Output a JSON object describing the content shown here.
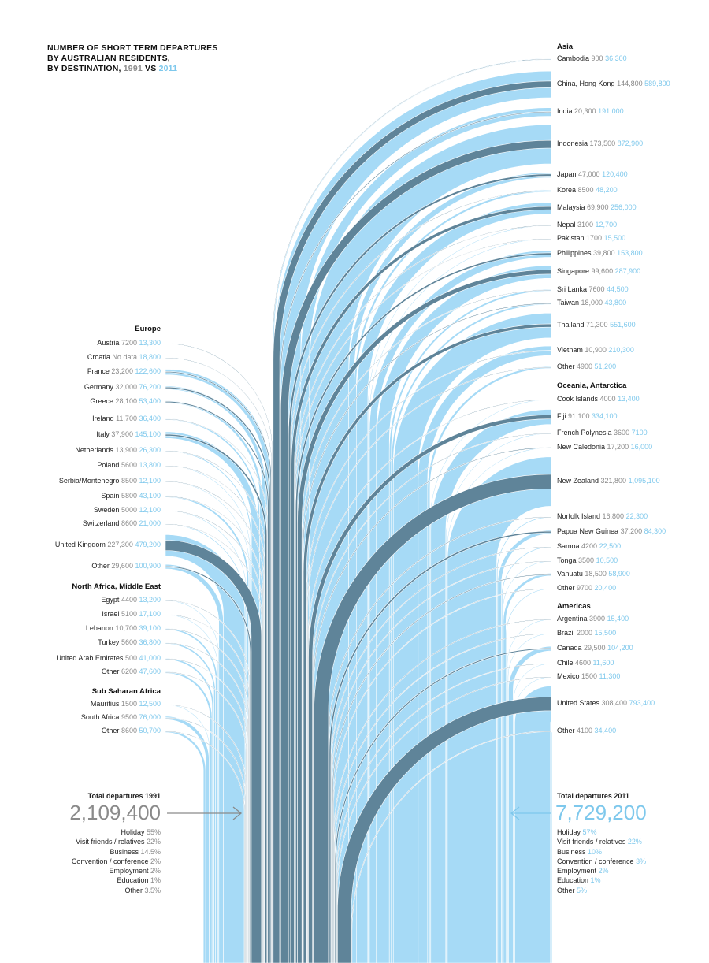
{
  "title_lines": [
    "NUMBER OF SHORT TERM DEPARTURES",
    "BY AUSTRALIAN RESIDENTS,",
    "BY DESTINATION,"
  ],
  "title_year_1991": "1991",
  "title_vs": "VS",
  "title_year_2011": "2011",
  "colors": {
    "color_1991": "#5f8499",
    "color_2011": "#a6daf6",
    "label_1991": "#8a8a8a",
    "label_2011": "#7ec8ec"
  },
  "chart_data": {
    "type": "flow",
    "title": "Number of short term departures by Australian residents, by destination, 1991 vs 2011",
    "series": [
      "1991",
      "2011"
    ],
    "groups": [
      {
        "name": "Asia",
        "side": "right",
        "items": [
          {
            "name": "Cambodia",
            "v1991": "900",
            "v2011": "36,300"
          },
          {
            "name": "China, Hong Kong",
            "v1991": "144,800",
            "v2011": "589,800"
          },
          {
            "name": "India",
            "v1991": "20,300",
            "v2011": "191,000"
          },
          {
            "name": "Indonesia",
            "v1991": "173,500",
            "v2011": "872,900"
          },
          {
            "name": "Japan",
            "v1991": "47,000",
            "v2011": "120,400"
          },
          {
            "name": "Korea",
            "v1991": "8500",
            "v2011": "48,200"
          },
          {
            "name": "Malaysia",
            "v1991": "69,900",
            "v2011": "256,000"
          },
          {
            "name": "Nepal",
            "v1991": "3100",
            "v2011": "12,700"
          },
          {
            "name": "Pakistan",
            "v1991": "1700",
            "v2011": "15,500"
          },
          {
            "name": "Philippines",
            "v1991": "39,800",
            "v2011": "153,800"
          },
          {
            "name": "Singapore",
            "v1991": "99,600",
            "v2011": "287,900"
          },
          {
            "name": "Sri Lanka",
            "v1991": "7600",
            "v2011": "44,500"
          },
          {
            "name": "Taiwan",
            "v1991": "18,000",
            "v2011": "43,800"
          },
          {
            "name": "Thailand",
            "v1991": "71,300",
            "v2011": "551,600"
          },
          {
            "name": "Vietnam",
            "v1991": "10,900",
            "v2011": "210,300"
          },
          {
            "name": "Other",
            "v1991": "4900",
            "v2011": "51,200"
          }
        ]
      },
      {
        "name": "Oceania, Antarctica",
        "side": "right",
        "items": [
          {
            "name": "Cook Islands",
            "v1991": "4000",
            "v2011": "13,400"
          },
          {
            "name": "Fiji",
            "v1991": "91,100",
            "v2011": "334,100"
          },
          {
            "name": "French Polynesia",
            "v1991": "3600",
            "v2011": "7100"
          },
          {
            "name": "New Caledonia",
            "v1991": "17,200",
            "v2011": "16,000"
          },
          {
            "name": "New Zealand",
            "v1991": "321,800",
            "v2011": "1,095,100"
          },
          {
            "name": "Norfolk Island",
            "v1991": "16,800",
            "v2011": "22,300"
          },
          {
            "name": "Papua New Guinea",
            "v1991": "37,200",
            "v2011": "84,300"
          },
          {
            "name": "Samoa",
            "v1991": "4200",
            "v2011": "22,500"
          },
          {
            "name": "Tonga",
            "v1991": "3500",
            "v2011": "10,500"
          },
          {
            "name": "Vanuatu",
            "v1991": "18,500",
            "v2011": "58,900"
          },
          {
            "name": "Other",
            "v1991": "9700",
            "v2011": "20,400"
          }
        ]
      },
      {
        "name": "Americas",
        "side": "right",
        "items": [
          {
            "name": "Argentina",
            "v1991": "3900",
            "v2011": "15,400"
          },
          {
            "name": "Brazil",
            "v1991": "2000",
            "v2011": "15,500"
          },
          {
            "name": "Canada",
            "v1991": "29,500",
            "v2011": "104,200"
          },
          {
            "name": "Chile",
            "v1991": "4600",
            "v2011": "11,600"
          },
          {
            "name": "Mexico",
            "v1991": "1500",
            "v2011": "11,300"
          },
          {
            "name": "United States",
            "v1991": "308,400",
            "v2011": "793,400"
          },
          {
            "name": "Other",
            "v1991": "4100",
            "v2011": "34,400"
          }
        ]
      },
      {
        "name": "Europe",
        "side": "left",
        "items": [
          {
            "name": "Austria",
            "v1991": "7200",
            "v2011": "13,300"
          },
          {
            "name": "Croatia",
            "v1991": "No data",
            "v2011": "18,800"
          },
          {
            "name": "France",
            "v1991": "23,200",
            "v2011": "122,600"
          },
          {
            "name": "Germany",
            "v1991": "32,000",
            "v2011": "76,200"
          },
          {
            "name": "Greece",
            "v1991": "28,100",
            "v2011": "53,400"
          },
          {
            "name": "Ireland",
            "v1991": "11,700",
            "v2011": "36,400"
          },
          {
            "name": "Italy",
            "v1991": "37,900",
            "v2011": "145,100"
          },
          {
            "name": "Netherlands",
            "v1991": "13,900",
            "v2011": "26,300"
          },
          {
            "name": "Poland",
            "v1991": "5600",
            "v2011": "13,800"
          },
          {
            "name": "Serbia/Montenegro",
            "v1991": "8500",
            "v2011": "12,100"
          },
          {
            "name": "Spain",
            "v1991": "5800",
            "v2011": "43,100"
          },
          {
            "name": "Sweden",
            "v1991": "5000",
            "v2011": "12,100"
          },
          {
            "name": "Switzerland",
            "v1991": "8600",
            "v2011": "21,000"
          },
          {
            "name": "United Kingdom",
            "v1991": "227,300",
            "v2011": "479,200"
          },
          {
            "name": "Other",
            "v1991": "29,600",
            "v2011": "100,900"
          }
        ]
      },
      {
        "name": "North Africa, Middle East",
        "side": "left",
        "items": [
          {
            "name": "Egypt",
            "v1991": "4400",
            "v2011": "13,200"
          },
          {
            "name": "Israel",
            "v1991": "5100",
            "v2011": "17,100"
          },
          {
            "name": "Lebanon",
            "v1991": "10,700",
            "v2011": "39,100"
          },
          {
            "name": "Turkey",
            "v1991": "5600",
            "v2011": "36,800"
          },
          {
            "name": "United Arab Emirates",
            "v1991": "500",
            "v2011": "41,000"
          },
          {
            "name": "Other",
            "v1991": "6200",
            "v2011": "47,600"
          }
        ]
      },
      {
        "name": "Sub Saharan Africa",
        "side": "left",
        "items": [
          {
            "name": "Mauritius",
            "v1991": "1500",
            "v2011": "12,500"
          },
          {
            "name": "South Africa",
            "v1991": "9500",
            "v2011": "76,000"
          },
          {
            "name": "Other",
            "v1991": "8600",
            "v2011": "50,700"
          }
        ]
      }
    ],
    "totals": {
      "t1991": {
        "label": "Total departures 1991",
        "value": "2,109,400",
        "purposes": [
          {
            "name": "Holiday",
            "pct": "55%"
          },
          {
            "name": "Visit friends / relatives",
            "pct": "22%"
          },
          {
            "name": "Business",
            "pct": "14.5%"
          },
          {
            "name": "Convention / conference",
            "pct": "2%"
          },
          {
            "name": "Employment",
            "pct": "2%"
          },
          {
            "name": "Education",
            "pct": "1%"
          },
          {
            "name": "Other",
            "pct": "3.5%"
          }
        ]
      },
      "t2011": {
        "label": "Total departures 2011",
        "value": "7,729,200",
        "purposes": [
          {
            "name": "Holiday",
            "pct": "57%"
          },
          {
            "name": "Visit friends / relatives",
            "pct": "22%"
          },
          {
            "name": "Business",
            "pct": "10%"
          },
          {
            "name": "Convention / conference",
            "pct": "3%"
          },
          {
            "name": "Employment",
            "pct": "2%"
          },
          {
            "name": "Education",
            "pct": "1%"
          },
          {
            "name": "Other",
            "pct": "5%"
          }
        ]
      }
    }
  }
}
